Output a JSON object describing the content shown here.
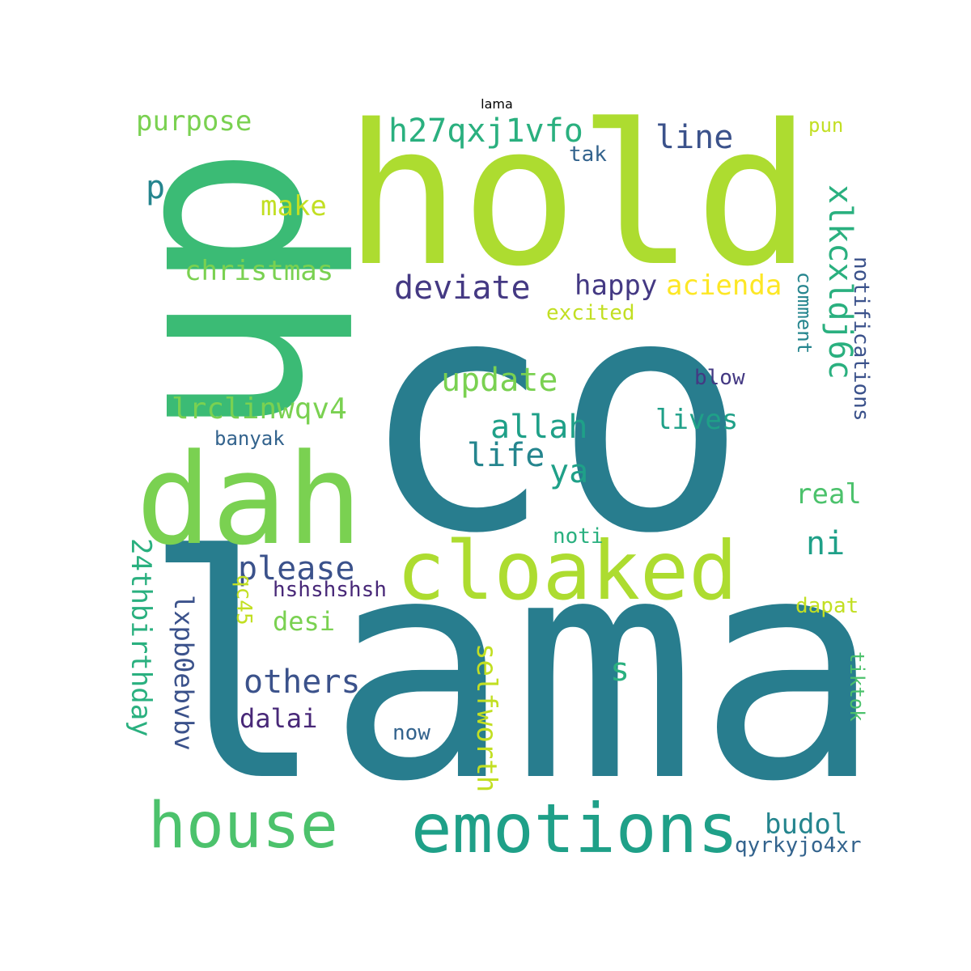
{
  "title": "lama",
  "palette": {
    "teal": "#287d8e",
    "lime": "#addc30",
    "green": "#4cc26c",
    "lightgreen": "#7ad151",
    "emerald": "#3bbb75",
    "seagreen": "#1fa088",
    "cyan": "#25858e",
    "blue": "#3b528b",
    "indigo": "#443983",
    "purple": "#482878",
    "yellow": "#fde725",
    "chartreuse": "#c2df23",
    "mint": "#2ab07f",
    "steel": "#33638d"
  },
  "words": [
    {
      "text": "co",
      "color": "teal"
    },
    {
      "text": "lama",
      "color": "teal"
    },
    {
      "text": "hold",
      "color": "lime"
    },
    {
      "text": "dh",
      "color": "emerald"
    },
    {
      "text": "dah",
      "color": "lightgreen"
    },
    {
      "text": "cloaked",
      "color": "lime"
    },
    {
      "text": "emotions",
      "color": "seagreen"
    },
    {
      "text": "house",
      "color": "green"
    },
    {
      "text": "h27qxj1vfo",
      "color": "mint"
    },
    {
      "text": "xlkcxldj6c",
      "color": "mint"
    },
    {
      "text": "deviate",
      "color": "indigo"
    },
    {
      "text": "allah",
      "color": "seagreen"
    },
    {
      "text": "update",
      "color": "lightgreen"
    },
    {
      "text": "line",
      "color": "blue"
    },
    {
      "text": "purpose",
      "color": "lightgreen"
    },
    {
      "text": "christmas",
      "color": "lightgreen"
    },
    {
      "text": "happy",
      "color": "indigo"
    },
    {
      "text": "acienda",
      "color": "yellow"
    },
    {
      "text": "life",
      "color": "cyan"
    },
    {
      "text": "ya",
      "color": "seagreen"
    },
    {
      "text": "please",
      "color": "blue"
    },
    {
      "text": "others",
      "color": "blue"
    },
    {
      "text": "lrclinwqv4",
      "color": "lightgreen"
    },
    {
      "text": "lives",
      "color": "seagreen"
    },
    {
      "text": "ni",
      "color": "seagreen"
    },
    {
      "text": "real",
      "color": "green"
    },
    {
      "text": "budol",
      "color": "cyan"
    },
    {
      "text": "make",
      "color": "chartreuse"
    },
    {
      "text": "p",
      "color": "cyan"
    },
    {
      "text": "24thbirthday",
      "color": "mint"
    },
    {
      "text": "lxpb0ebvbv",
      "color": "blue"
    },
    {
      "text": "selfworth",
      "color": "chartreuse"
    },
    {
      "text": "qc45",
      "color": "chartreuse"
    },
    {
      "text": "desi",
      "color": "lightgreen"
    },
    {
      "text": "dalai",
      "color": "purple"
    },
    {
      "text": "notifications",
      "color": "blue"
    },
    {
      "text": "comment",
      "color": "cyan"
    },
    {
      "text": "tiktok",
      "color": "green"
    },
    {
      "text": "s",
      "color": "mint"
    },
    {
      "text": "hshshshsh",
      "color": "purple"
    },
    {
      "text": "qyrkyjo4xr",
      "color": "steel"
    },
    {
      "text": "blow",
      "color": "indigo"
    },
    {
      "text": "excited",
      "color": "chartreuse"
    },
    {
      "text": "banyak",
      "color": "steel"
    },
    {
      "text": "noti",
      "color": "mint"
    },
    {
      "text": "now",
      "color": "steel"
    },
    {
      "text": "tak",
      "color": "steel"
    },
    {
      "text": "pun",
      "color": "chartreuse"
    },
    {
      "text": "dapat",
      "color": "chartreuse"
    }
  ]
}
